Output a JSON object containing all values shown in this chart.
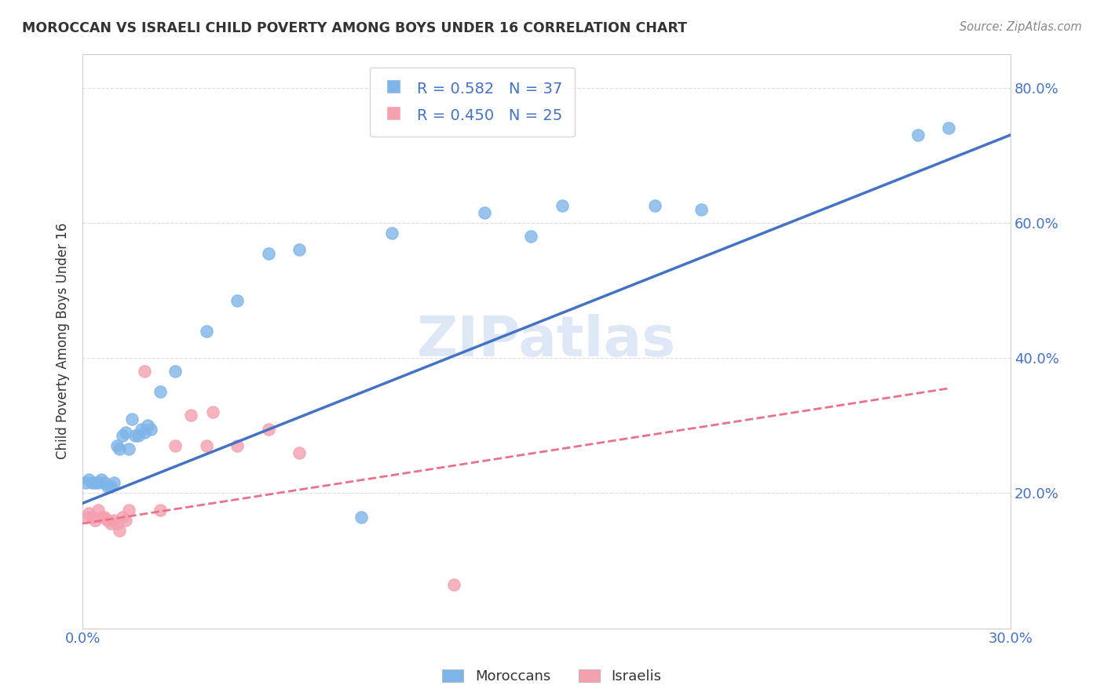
{
  "title": "MOROCCAN VS ISRAELI CHILD POVERTY AMONG BOYS UNDER 16 CORRELATION CHART",
  "source": "Source: ZipAtlas.com",
  "ylabel": "Child Poverty Among Boys Under 16",
  "xlim": [
    0.0,
    0.3
  ],
  "ylim": [
    0.0,
    0.85
  ],
  "x_ticks": [
    0.0,
    0.05,
    0.1,
    0.15,
    0.2,
    0.25,
    0.3
  ],
  "x_tick_labels": [
    "0.0%",
    "",
    "",
    "",
    "",
    "",
    "30.0%"
  ],
  "y_ticks": [
    0.0,
    0.2,
    0.4,
    0.6,
    0.8
  ],
  "y_tick_labels_left": [
    "",
    "",
    "",
    "",
    ""
  ],
  "y_tick_labels_right": [
    "",
    "20.0%",
    "40.0%",
    "60.0%",
    "80.0%"
  ],
  "moroccan_color": "#7eb5e8",
  "israeli_color": "#f4a0b0",
  "moroccan_R": 0.582,
  "moroccan_N": 37,
  "israeli_R": 0.45,
  "israeli_N": 25,
  "moroccan_points": [
    [
      0.001,
      0.215
    ],
    [
      0.002,
      0.22
    ],
    [
      0.003,
      0.215
    ],
    [
      0.004,
      0.215
    ],
    [
      0.005,
      0.215
    ],
    [
      0.006,
      0.22
    ],
    [
      0.007,
      0.215
    ],
    [
      0.008,
      0.21
    ],
    [
      0.009,
      0.21
    ],
    [
      0.01,
      0.215
    ],
    [
      0.011,
      0.27
    ],
    [
      0.012,
      0.265
    ],
    [
      0.013,
      0.285
    ],
    [
      0.014,
      0.29
    ],
    [
      0.015,
      0.265
    ],
    [
      0.016,
      0.31
    ],
    [
      0.017,
      0.285
    ],
    [
      0.018,
      0.285
    ],
    [
      0.019,
      0.295
    ],
    [
      0.02,
      0.29
    ],
    [
      0.021,
      0.3
    ],
    [
      0.022,
      0.295
    ],
    [
      0.025,
      0.35
    ],
    [
      0.03,
      0.38
    ],
    [
      0.04,
      0.44
    ],
    [
      0.05,
      0.485
    ],
    [
      0.06,
      0.555
    ],
    [
      0.07,
      0.56
    ],
    [
      0.09,
      0.165
    ],
    [
      0.1,
      0.585
    ],
    [
      0.13,
      0.615
    ],
    [
      0.145,
      0.58
    ],
    [
      0.155,
      0.625
    ],
    [
      0.185,
      0.625
    ],
    [
      0.2,
      0.62
    ],
    [
      0.27,
      0.73
    ],
    [
      0.28,
      0.74
    ]
  ],
  "israeli_points": [
    [
      0.001,
      0.165
    ],
    [
      0.002,
      0.17
    ],
    [
      0.003,
      0.165
    ],
    [
      0.004,
      0.16
    ],
    [
      0.005,
      0.175
    ],
    [
      0.006,
      0.165
    ],
    [
      0.007,
      0.165
    ],
    [
      0.008,
      0.16
    ],
    [
      0.009,
      0.155
    ],
    [
      0.01,
      0.16
    ],
    [
      0.011,
      0.155
    ],
    [
      0.012,
      0.145
    ],
    [
      0.013,
      0.165
    ],
    [
      0.014,
      0.16
    ],
    [
      0.015,
      0.175
    ],
    [
      0.02,
      0.38
    ],
    [
      0.025,
      0.175
    ],
    [
      0.03,
      0.27
    ],
    [
      0.035,
      0.315
    ],
    [
      0.04,
      0.27
    ],
    [
      0.042,
      0.32
    ],
    [
      0.05,
      0.27
    ],
    [
      0.06,
      0.295
    ],
    [
      0.07,
      0.26
    ],
    [
      0.12,
      0.065
    ]
  ],
  "moroccan_line_color": "#4472c4",
  "israeli_line_color": "#e8728a",
  "watermark": "ZIPatlas",
  "watermark_color": "#c8d8f0",
  "background_color": "#ffffff",
  "grid_color": "#dddddd"
}
